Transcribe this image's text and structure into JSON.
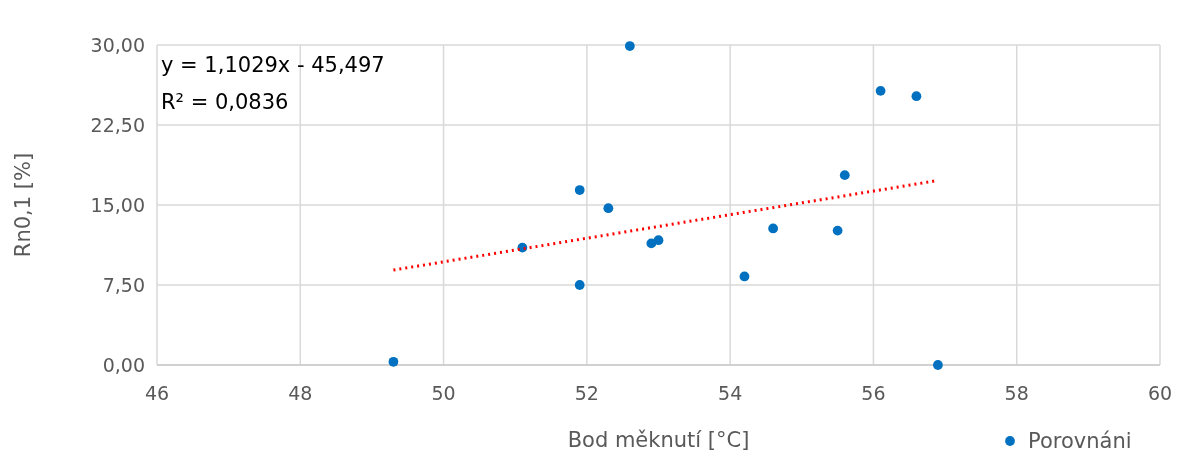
{
  "chart_data": {
    "type": "scatter",
    "xlabel": "Bod měknutí [°C]",
    "ylabel": "Rn0,1 [%]",
    "xlim": [
      46,
      60
    ],
    "xticks": [
      46,
      48,
      50,
      52,
      54,
      56,
      58,
      60
    ],
    "ylim": [
      0,
      30
    ],
    "yticks": [
      {
        "value": 0,
        "label": "0,00"
      },
      {
        "value": 7.5,
        "label": "7,50"
      },
      {
        "value": 15,
        "label": "15,00"
      },
      {
        "value": 22.5,
        "label": "22,50"
      },
      {
        "value": 30,
        "label": "30,00"
      }
    ],
    "grid": true,
    "legend": "bottom right",
    "annotations": [
      "y = 1,1029x - 45,497",
      "R² = 0,0836"
    ],
    "series": [
      {
        "name": "Porovnáni",
        "color": "#0070c0",
        "marker": "circle",
        "x": [
          49.3,
          51.1,
          51.9,
          51.9,
          52.3,
          52.6,
          52.9,
          53.0,
          54.2,
          54.6,
          55.5,
          55.6,
          56.1,
          56.6,
          56.9
        ],
        "values": [
          0.3,
          11.0,
          16.4,
          7.5,
          14.7,
          29.9,
          11.4,
          11.7,
          8.3,
          12.8,
          12.6,
          17.8,
          25.7,
          25.2,
          0.0
        ]
      },
      {
        "type": "line",
        "color": "#ff0000",
        "line_style": "dotted",
        "marker": "none",
        "x": [
          49.3,
          56.9
        ],
        "values": [
          8.9,
          17.3
        ]
      }
    ]
  }
}
